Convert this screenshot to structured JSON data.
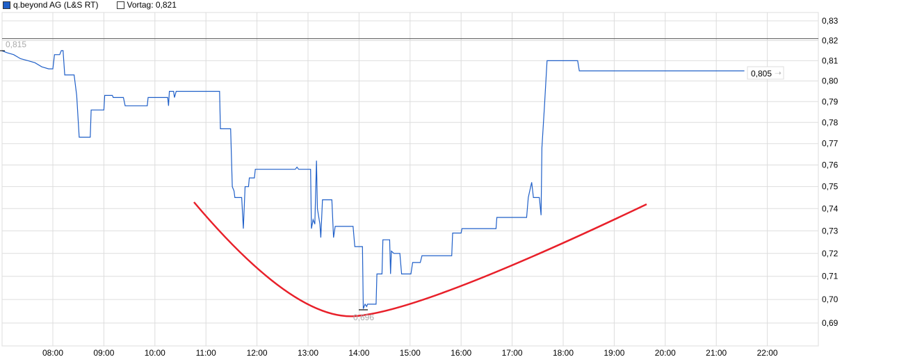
{
  "chart_data": {
    "type": "line",
    "title": "",
    "xlabel": "",
    "ylabel": "",
    "y_scale": "log",
    "ylim": [
      0.685,
      0.835
    ],
    "xlim": [
      "07:00",
      "23:00"
    ],
    "grid": true,
    "legend_position": "top-left",
    "x_ticks": [
      "08:00",
      "09:00",
      "10:00",
      "11:00",
      "12:00",
      "13:00",
      "14:00",
      "15:00",
      "16:00",
      "17:00",
      "18:00",
      "19:00",
      "20:00",
      "21:00",
      "22:00"
    ],
    "y_ticks": [
      "0,69",
      "0,70",
      "0,71",
      "0,72",
      "0,73",
      "0,74",
      "0,75",
      "0,76",
      "0,77",
      "0,78",
      "0,79",
      "0,80",
      "0,81",
      "0,82",
      "0,83"
    ],
    "series": [
      {
        "name": "q.beyond AG (L&S RT)",
        "color": "#1f5fc8",
        "points": [
          [
            "07:00",
            0.815
          ],
          [
            "07:06",
            0.814
          ],
          [
            "07:14",
            0.813
          ],
          [
            "07:22",
            0.811
          ],
          [
            "07:31",
            0.81
          ],
          [
            "07:39",
            0.809
          ],
          [
            "07:47",
            0.807
          ],
          [
            "07:55",
            0.806
          ],
          [
            "08:00",
            0.806
          ],
          [
            "08:02",
            0.813
          ],
          [
            "08:08",
            0.813
          ],
          [
            "08:10",
            0.815
          ],
          [
            "08:12",
            0.815
          ],
          [
            "08:14",
            0.803
          ],
          [
            "08:25",
            0.803
          ],
          [
            "08:28",
            0.793
          ],
          [
            "08:31",
            0.773
          ],
          [
            "08:44",
            0.773
          ],
          [
            "08:45",
            0.786
          ],
          [
            "09:00",
            0.786
          ],
          [
            "09:01",
            0.793
          ],
          [
            "09:10",
            0.793
          ],
          [
            "09:11",
            0.792
          ],
          [
            "09:23",
            0.792
          ],
          [
            "09:25",
            0.788
          ],
          [
            "09:51",
            0.788
          ],
          [
            "09:52",
            0.792
          ],
          [
            "10:15",
            0.792
          ],
          [
            "10:16",
            0.788
          ],
          [
            "10:17",
            0.795
          ],
          [
            "10:22",
            0.795
          ],
          [
            "10:23",
            0.792
          ],
          [
            "10:25",
            0.795
          ],
          [
            "11:16",
            0.795
          ],
          [
            "11:17",
            0.777
          ],
          [
            "11:29",
            0.777
          ],
          [
            "11:31",
            0.75
          ],
          [
            "11:33",
            0.748
          ],
          [
            "11:34",
            0.745
          ],
          [
            "11:42",
            0.745
          ],
          [
            "11:44",
            0.731
          ],
          [
            "11:46",
            0.75
          ],
          [
            "11:50",
            0.75
          ],
          [
            "11:51",
            0.754
          ],
          [
            "11:57",
            0.754
          ],
          [
            "11:58",
            0.758
          ],
          [
            "12:45",
            0.758
          ],
          [
            "12:47",
            0.759
          ],
          [
            "12:49",
            0.758
          ],
          [
            "13:03",
            0.758
          ],
          [
            "13:04",
            0.731
          ],
          [
            "13:06",
            0.735
          ],
          [
            "13:08",
            0.733
          ],
          [
            "13:10",
            0.762
          ],
          [
            "13:11",
            0.74
          ],
          [
            "13:14",
            0.733
          ],
          [
            "13:15",
            0.727
          ],
          [
            "13:17",
            0.744
          ],
          [
            "13:28",
            0.744
          ],
          [
            "13:30",
            0.727
          ],
          [
            "13:32",
            0.732
          ],
          [
            "13:53",
            0.732
          ],
          [
            "13:55",
            0.723
          ],
          [
            "14:04",
            0.723
          ],
          [
            "14:05",
            0.696
          ],
          [
            "14:07",
            0.698
          ],
          [
            "14:09",
            0.697
          ],
          [
            "14:10",
            0.698
          ],
          [
            "14:20",
            0.698
          ],
          [
            "14:21",
            0.711
          ],
          [
            "14:27",
            0.711
          ],
          [
            "14:28",
            0.726
          ],
          [
            "14:36",
            0.726
          ],
          [
            "14:37",
            0.711
          ],
          [
            "14:38",
            0.721
          ],
          [
            "14:41",
            0.72
          ],
          [
            "14:48",
            0.72
          ],
          [
            "14:50",
            0.711
          ],
          [
            "15:01",
            0.711
          ],
          [
            "15:03",
            0.716
          ],
          [
            "15:12",
            0.716
          ],
          [
            "15:14",
            0.719
          ],
          [
            "15:49",
            0.719
          ],
          [
            "15:50",
            0.729
          ],
          [
            "16:00",
            0.729
          ],
          [
            "16:01",
            0.731
          ],
          [
            "16:41",
            0.731
          ],
          [
            "16:42",
            0.736
          ],
          [
            "17:17",
            0.736
          ],
          [
            "17:19",
            0.745
          ],
          [
            "17:23",
            0.752
          ],
          [
            "17:25",
            0.745
          ],
          [
            "17:32",
            0.745
          ],
          [
            "17:34",
            0.737
          ],
          [
            "17:35",
            0.768
          ],
          [
            "17:38",
            0.788
          ],
          [
            "17:41",
            0.81
          ],
          [
            "18:17",
            0.81
          ],
          [
            "18:19",
            0.805
          ],
          [
            "21:33",
            0.805
          ]
        ]
      }
    ],
    "reference_line": {
      "name": "Vortag",
      "value": 0.821,
      "label": "Vortag: 0,821",
      "color": "#555555"
    },
    "annotations": {
      "high_label": "0,815",
      "low_label": "0,696",
      "last_label": "0,805",
      "last_arrow_icon": "arrow-right-icon",
      "trend_curve_color": "#e8202a"
    }
  }
}
